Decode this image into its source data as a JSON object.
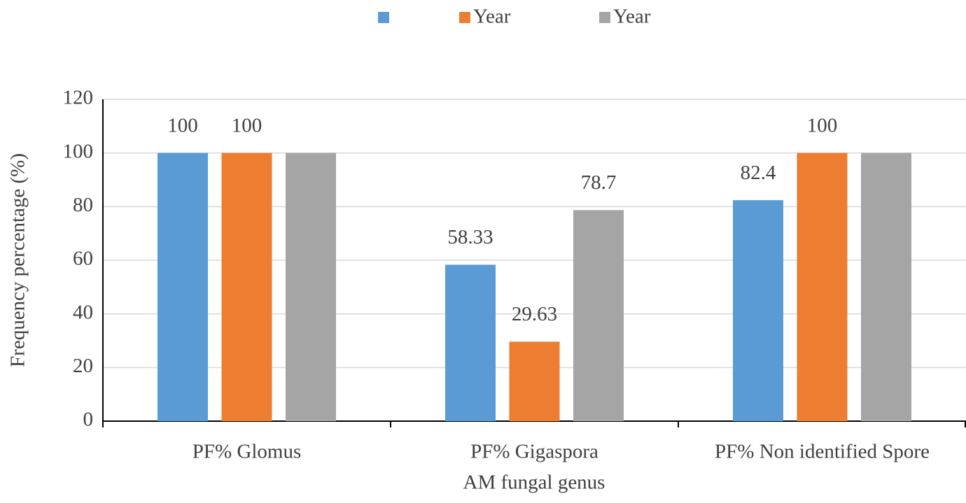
{
  "chart_data": {
    "type": "bar",
    "categories": [
      "PF% Glomus",
      "PF% Gigaspora",
      "PF% Non identified Spore"
    ],
    "series": [
      {
        "color": "#5b9bd5",
        "values": [
          100,
          58.33,
          82.4
        ],
        "value_labels": [
          "100",
          "58.33",
          "82.4"
        ]
      },
      {
        "name": "Year",
        "color": "#ed7d31",
        "values": [
          100,
          29.63,
          100
        ],
        "value_labels": [
          "100",
          "29.63",
          "100"
        ]
      },
      {
        "name": "Year",
        "color": "#a5a5a5",
        "values": [
          100,
          78.7,
          100
        ],
        "value_labels": [
          null,
          "78.7",
          null
        ]
      }
    ],
    "x_label": "AM fungal genus",
    "y_label": "Frequency percentage (%)",
    "ylim": [
      0,
      120
    ],
    "yticks": [
      0,
      20,
      40,
      60,
      80,
      100,
      120
    ],
    "grid": true,
    "legend": "top"
  }
}
